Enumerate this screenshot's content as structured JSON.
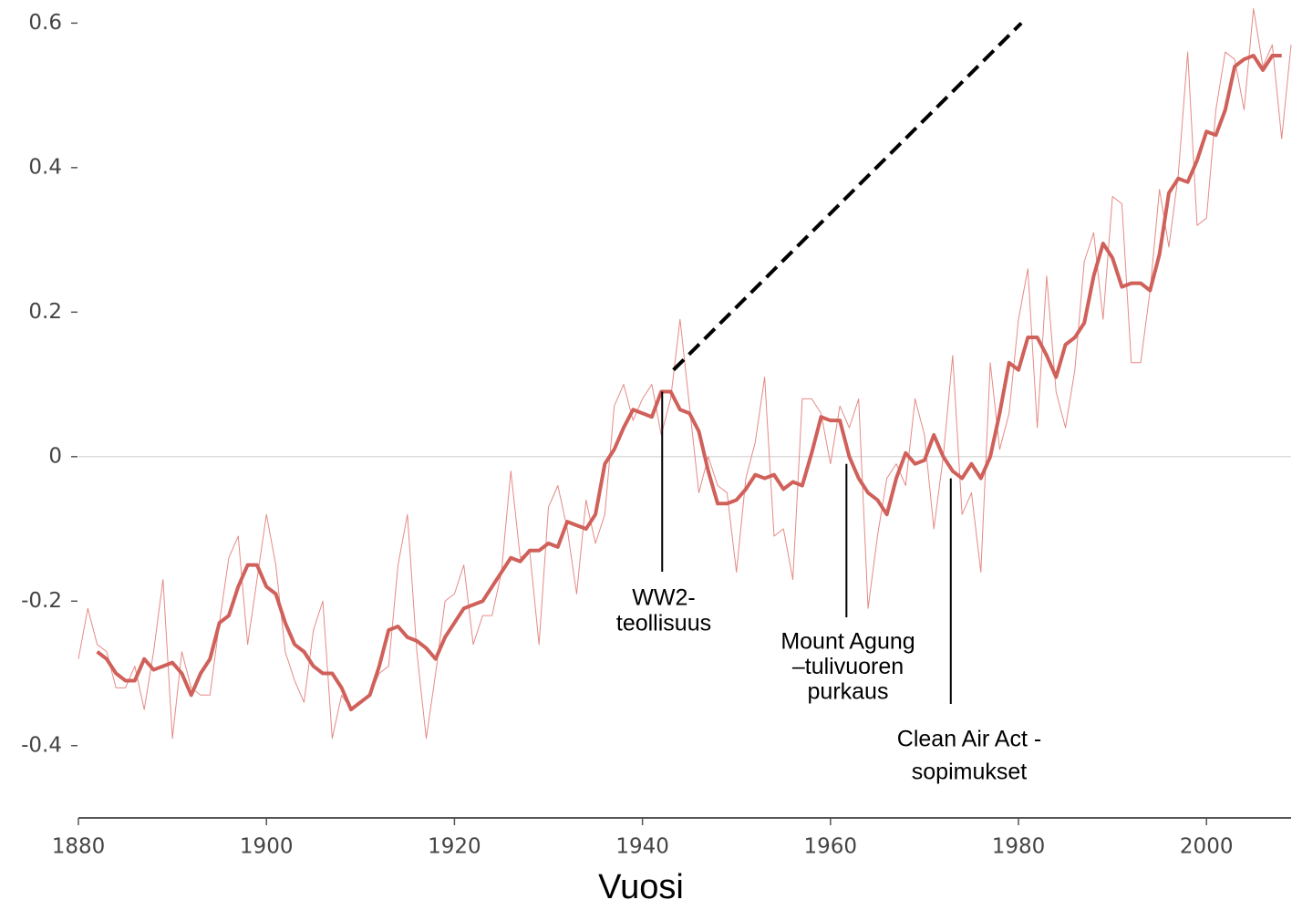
{
  "chart_data": {
    "type": "line",
    "x_label": "Vuosi",
    "x": [
      1880,
      1881,
      1882,
      1883,
      1884,
      1885,
      1886,
      1887,
      1888,
      1889,
      1890,
      1891,
      1892,
      1893,
      1894,
      1895,
      1896,
      1897,
      1898,
      1899,
      1900,
      1901,
      1902,
      1903,
      1904,
      1905,
      1906,
      1907,
      1908,
      1909,
      1910,
      1911,
      1912,
      1913,
      1914,
      1915,
      1916,
      1917,
      1918,
      1919,
      1920,
      1921,
      1922,
      1923,
      1924,
      1925,
      1926,
      1927,
      1928,
      1929,
      1930,
      1931,
      1932,
      1933,
      1934,
      1935,
      1936,
      1937,
      1938,
      1939,
      1940,
      1941,
      1942,
      1943,
      1944,
      1945,
      1946,
      1947,
      1948,
      1949,
      1950,
      1951,
      1952,
      1953,
      1954,
      1955,
      1956,
      1957,
      1958,
      1959,
      1960,
      1961,
      1962,
      1963,
      1964,
      1965,
      1966,
      1967,
      1968,
      1969,
      1970,
      1971,
      1972,
      1973,
      1974,
      1975,
      1976,
      1977,
      1978,
      1979,
      1980,
      1981,
      1982,
      1983,
      1984,
      1985,
      1986,
      1987,
      1988,
      1989,
      1990,
      1991,
      1992,
      1993,
      1994,
      1995,
      1996,
      1997,
      1998,
      1999,
      2000,
      2001,
      2002,
      2003,
      2004,
      2005,
      2006,
      2007,
      2008,
      2009
    ],
    "series": [
      {
        "color": "#e58a86",
        "width": 1,
        "values": [
          -0.28,
          -0.21,
          -0.26,
          -0.27,
          -0.32,
          -0.32,
          -0.29,
          -0.35,
          -0.27,
          -0.17,
          -0.39,
          -0.27,
          -0.32,
          -0.33,
          -0.33,
          -0.23,
          -0.14,
          -0.11,
          -0.26,
          -0.17,
          -0.08,
          -0.15,
          -0.27,
          -0.31,
          -0.34,
          -0.24,
          -0.2,
          -0.39,
          -0.33,
          -0.35,
          -0.34,
          -0.33,
          -0.3,
          -0.29,
          -0.15,
          -0.08,
          -0.27,
          -0.39,
          -0.3,
          -0.2,
          -0.19,
          -0.15,
          -0.26,
          -0.22,
          -0.22,
          -0.16,
          -0.02,
          -0.14,
          -0.13,
          -0.26,
          -0.07,
          -0.04,
          -0.1,
          -0.19,
          -0.06,
          -0.12,
          -0.08,
          0.07,
          0.1,
          0.05,
          0.08,
          0.1,
          0.03,
          0.08,
          0.19,
          0.07,
          -0.05,
          0.0,
          -0.04,
          -0.05,
          -0.16,
          -0.03,
          0.02,
          0.11,
          -0.11,
          -0.1,
          -0.17,
          0.08,
          0.08,
          0.06,
          -0.01,
          0.07,
          0.04,
          0.08,
          -0.21,
          -0.11,
          -0.03,
          -0.01,
          -0.04,
          0.08,
          0.03,
          -0.1,
          0.0,
          0.14,
          -0.08,
          -0.05,
          -0.16,
          0.13,
          0.01,
          0.06,
          0.19,
          0.26,
          0.04,
          0.25,
          0.09,
          0.04,
          0.12,
          0.27,
          0.31,
          0.19,
          0.36,
          0.35,
          0.13,
          0.13,
          0.23,
          0.37,
          0.29,
          0.39,
          0.56,
          0.32,
          0.33,
          0.48,
          0.56,
          0.55,
          0.48,
          0.62,
          0.54,
          0.57,
          0.44,
          0.57
        ]
      },
      {
        "color": "#d0605a",
        "width": 4,
        "values": [
          null,
          null,
          -0.27,
          -0.28,
          -0.3,
          -0.31,
          -0.31,
          -0.28,
          -0.295,
          -0.29,
          -0.285,
          -0.3,
          -0.33,
          -0.3,
          -0.28,
          -0.23,
          -0.22,
          -0.18,
          -0.15,
          -0.15,
          -0.18,
          -0.19,
          -0.23,
          -0.26,
          -0.27,
          -0.29,
          -0.3,
          -0.3,
          -0.32,
          -0.35,
          -0.34,
          -0.33,
          -0.29,
          -0.24,
          -0.235,
          -0.25,
          -0.255,
          -0.265,
          -0.28,
          -0.25,
          -0.23,
          -0.21,
          -0.205,
          -0.2,
          -0.18,
          -0.16,
          -0.14,
          -0.145,
          -0.13,
          -0.13,
          -0.12,
          -0.125,
          -0.09,
          -0.095,
          -0.1,
          -0.08,
          -0.01,
          0.01,
          0.04,
          0.065,
          0.06,
          0.055,
          0.09,
          0.09,
          0.065,
          0.06,
          0.035,
          -0.02,
          -0.065,
          -0.065,
          -0.06,
          -0.045,
          -0.025,
          -0.03,
          -0.025,
          -0.045,
          -0.035,
          -0.04,
          0.005,
          0.055,
          0.05,
          0.05,
          0.0,
          -0.03,
          -0.05,
          -0.06,
          -0.08,
          -0.03,
          0.005,
          -0.01,
          -0.005,
          0.03,
          0.0,
          -0.02,
          -0.03,
          -0.01,
          -0.03,
          0.0,
          0.06,
          0.13,
          0.12,
          0.165,
          0.165,
          0.14,
          0.11,
          0.155,
          0.165,
          0.185,
          0.25,
          0.295,
          0.275,
          0.235,
          0.24,
          0.24,
          0.23,
          0.28,
          0.365,
          0.385,
          0.38,
          0.41,
          0.45,
          0.445,
          0.48,
          0.54,
          0.55,
          0.555,
          0.535,
          0.555,
          0.555,
          null
        ]
      }
    ],
    "trend_line": {
      "x": [
        1943.3,
        1980.3
      ],
      "y": [
        0.12,
        0.6
      ],
      "color": "#000"
    },
    "annotations": [
      {
        "lines": [
          "WW2-",
          "teollisuus"
        ],
        "x": 1942.1,
        "y": 0.09
      },
      {
        "lines": [
          "Mount Agung",
          "–tulivuoren",
          "purkaus"
        ],
        "x": 1961.7,
        "y": -0.01
      },
      {
        "lines": [
          "Clean Air Act -",
          "sopimukset"
        ],
        "x": 1972.8,
        "y": -0.03
      }
    ],
    "xlim": [
      1880,
      2009
    ],
    "ylim": [
      -0.5,
      0.632
    ],
    "xticks": [
      1880,
      1900,
      1920,
      1940,
      1960,
      1980,
      2000
    ],
    "yticks": [
      0.6,
      0.4,
      0.2,
      0,
      -0.2,
      -0.4
    ]
  }
}
